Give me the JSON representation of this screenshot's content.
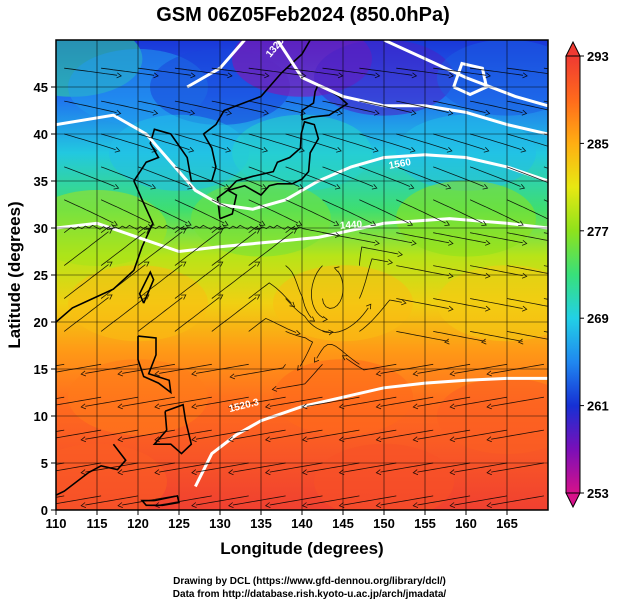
{
  "chart_data": {
    "type": "heatmap",
    "title": "GSM 06Z05Feb2024 (850.0hPa)",
    "xlabel": "Longitude (degrees)",
    "ylabel": "Latitude  (degrees)",
    "xlim": [
      110,
      170
    ],
    "ylim": [
      0,
      50
    ],
    "xticks": [
      "110",
      "115",
      "120",
      "125",
      "130",
      "135",
      "140",
      "145",
      "150",
      "155",
      "160",
      "165"
    ],
    "yticks": [
      "0",
      "5",
      "10",
      "15",
      "20",
      "25",
      "30",
      "35",
      "40",
      "45"
    ],
    "grid": true,
    "colorbar": {
      "range": [
        253,
        293
      ],
      "ticks": [
        "253",
        "261",
        "269",
        "277",
        "285",
        "293"
      ],
      "colors": [
        "#d6118a",
        "#7a0fb8",
        "#1630d4",
        "#2088f0",
        "#22d0e6",
        "#38e07a",
        "#8ee21c",
        "#e8e812",
        "#ffae12",
        "#ff6a1c",
        "#f03a32"
      ]
    },
    "contour_labels": [
      "1520.3",
      "1560",
      "1440",
      "1320"
    ],
    "field_samples": [
      {
        "lon": 112,
        "lat": 48,
        "value": 272
      },
      {
        "lon": 120,
        "lat": 45,
        "value": 266
      },
      {
        "lon": 130,
        "lat": 45,
        "value": 262
      },
      {
        "lon": 140,
        "lat": 48,
        "value": 256
      },
      {
        "lon": 150,
        "lat": 46,
        "value": 259
      },
      {
        "lon": 165,
        "lat": 46,
        "value": 263
      },
      {
        "lon": 125,
        "lat": 38,
        "value": 268
      },
      {
        "lon": 140,
        "lat": 38,
        "value": 270
      },
      {
        "lon": 160,
        "lat": 38,
        "value": 268
      },
      {
        "lon": 115,
        "lat": 30,
        "value": 278
      },
      {
        "lon": 135,
        "lat": 31,
        "value": 276
      },
      {
        "lon": 160,
        "lat": 31,
        "value": 277
      },
      {
        "lon": 120,
        "lat": 22,
        "value": 284
      },
      {
        "lon": 145,
        "lat": 22,
        "value": 284
      },
      {
        "lon": 165,
        "lat": 22,
        "value": 283
      },
      {
        "lon": 120,
        "lat": 12,
        "value": 288
      },
      {
        "lon": 145,
        "lat": 12,
        "value": 289
      },
      {
        "lon": 165,
        "lat": 10,
        "value": 290
      },
      {
        "lon": 115,
        "lat": 3,
        "value": 290
      },
      {
        "lon": 150,
        "lat": 3,
        "value": 291
      }
    ]
  },
  "credits": {
    "line1": "Drawing by DCL (https://www.gfd-dennou.org/library/dcl/)",
    "line2": "Data from http://database.rish.kyoto-u.ac.jp/arch/jmadata/"
  }
}
